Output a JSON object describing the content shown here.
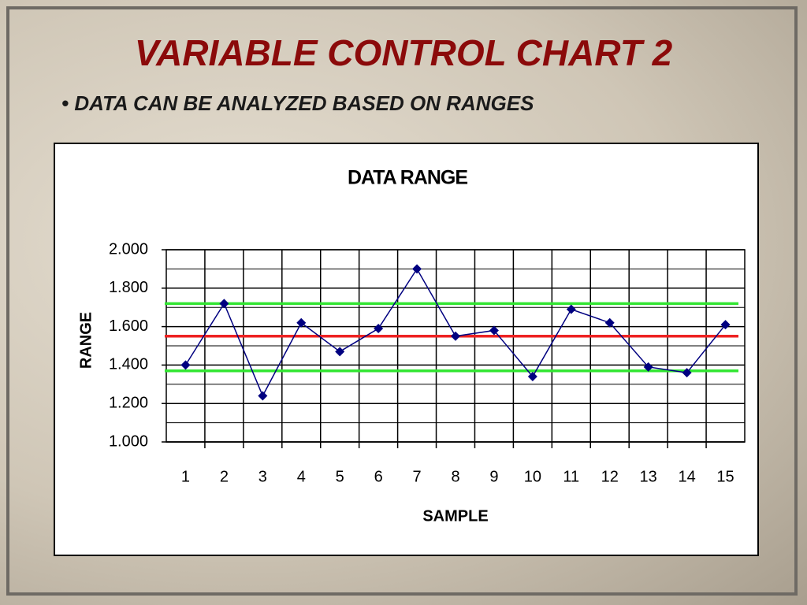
{
  "slide": {
    "title": "VARIABLE CONTROL CHART 2",
    "bullet": "DATA CAN BE ANALYZED BASED ON RANGES"
  },
  "chart_data": {
    "type": "line",
    "title": "DATA RANGE",
    "x_label": "SAMPLE",
    "y_label": "RANGE",
    "categories": [
      "1",
      "2",
      "3",
      "4",
      "5",
      "6",
      "7",
      "8",
      "9",
      "10",
      "11",
      "12",
      "13",
      "14",
      "15"
    ],
    "values": [
      1.4,
      1.72,
      1.24,
      1.62,
      1.47,
      1.59,
      1.9,
      1.55,
      1.58,
      1.34,
      1.69,
      1.62,
      1.39,
      1.36,
      1.61
    ],
    "color": "#000080",
    "control_lines": [
      {
        "value": 1.72,
        "color": "#33e633"
      },
      {
        "value": 1.55,
        "color": "#ee2222"
      },
      {
        "value": 1.37,
        "color": "#33e633"
      }
    ],
    "ylim": [
      1,
      2
    ],
    "yticks": [
      {
        "value": 1,
        "label": "1.000"
      },
      {
        "value": 1.2,
        "label": "1.200"
      },
      {
        "value": 1.4,
        "label": "1.400"
      },
      {
        "value": 1.6,
        "label": "1.600"
      },
      {
        "value": 1.8,
        "label": "1.800"
      },
      {
        "value": 2,
        "label": "2.000"
      }
    ],
    "minor_yticks": [
      1.1,
      1.3,
      1.5,
      1.7,
      1.9
    ],
    "grid": true
  }
}
